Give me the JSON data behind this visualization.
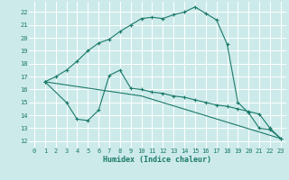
{
  "xlabel": "Humidex (Indice chaleur)",
  "bg_color": "#cdeaea",
  "grid_color": "#ffffff",
  "line_color": "#1a7a6a",
  "xlim": [
    -0.5,
    23.5
  ],
  "ylim": [
    11.5,
    22.8
  ],
  "xticks": [
    0,
    1,
    2,
    3,
    4,
    5,
    6,
    7,
    8,
    9,
    10,
    11,
    12,
    13,
    14,
    15,
    16,
    17,
    18,
    19,
    20,
    21,
    22,
    23
  ],
  "yticks": [
    12,
    13,
    14,
    15,
    16,
    17,
    18,
    19,
    20,
    21,
    22
  ],
  "line1_x": [
    1,
    2,
    3,
    4,
    5,
    6,
    7,
    8,
    9,
    10,
    11,
    12,
    13,
    14,
    15,
    16,
    17,
    18,
    19,
    20,
    21,
    22,
    23
  ],
  "line1_y": [
    16.6,
    17.0,
    17.5,
    18.2,
    19.0,
    19.6,
    19.9,
    20.5,
    21.0,
    21.5,
    21.6,
    21.5,
    21.8,
    22.0,
    22.4,
    21.9,
    21.4,
    19.5,
    15.0,
    14.2,
    13.0,
    12.9,
    12.2
  ],
  "line2_x": [
    1,
    3,
    4,
    5,
    6,
    7,
    8,
    9,
    10,
    11,
    12,
    13,
    14,
    15,
    16,
    17,
    18,
    19,
    20,
    21,
    22,
    23
  ],
  "line2_y": [
    16.6,
    15.0,
    13.7,
    13.6,
    14.4,
    17.1,
    17.5,
    16.1,
    16.0,
    15.8,
    15.7,
    15.5,
    15.4,
    15.2,
    15.0,
    14.8,
    14.7,
    14.5,
    14.3,
    14.1,
    13.0,
    12.2
  ],
  "line3_x": [
    1,
    10,
    23
  ],
  "line3_y": [
    16.6,
    15.5,
    12.2
  ]
}
